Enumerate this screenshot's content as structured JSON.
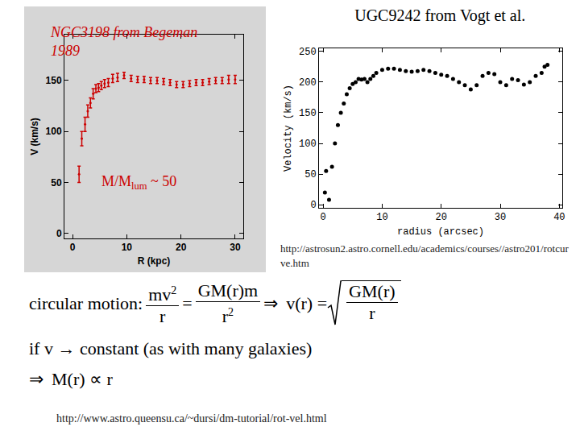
{
  "chart_data": [
    {
      "type": "scatter",
      "title": "NGC3198 from Begeman 1989",
      "x_label": "R (kpc)",
      "y_label": "V (km/s)",
      "color": "#cc0000",
      "x": [
        1.2,
        1.7,
        2.3,
        2.8,
        3.3,
        3.8,
        4.3,
        4.8,
        5.3,
        5.9,
        6.6,
        7.4,
        8.3,
        9.5,
        10.8,
        12.0,
        13.2,
        14.4,
        15.6,
        16.8,
        18.0,
        19.2,
        20.4,
        21.6,
        22.8,
        24.0,
        25.2,
        26.4,
        27.6,
        28.8,
        30.0
      ],
      "values": [
        58,
        93,
        107,
        120,
        128,
        137,
        142,
        143,
        145,
        147,
        148,
        152,
        153,
        155,
        152,
        151,
        151,
        150,
        150,
        149,
        148,
        146,
        146,
        147,
        148,
        148,
        149,
        150,
        150,
        151,
        151
      ],
      "errors": [
        8,
        7,
        7,
        6,
        5,
        5,
        4,
        4,
        4,
        4,
        4,
        4,
        4,
        3,
        3,
        3,
        3,
        3,
        3,
        3,
        3,
        3,
        3,
        3,
        3,
        3,
        3,
        3,
        3,
        4,
        4
      ],
      "xlim": [
        -1.5,
        31.5
      ],
      "ylim": [
        -5,
        195
      ],
      "xticks": [
        0,
        10,
        20,
        30
      ],
      "yticks": [
        0,
        50,
        100,
        150
      ],
      "annotation": {
        "text": "M/M",
        "subscript": "lum",
        "suffix": " ~ 50",
        "x": 5,
        "y": 50
      }
    },
    {
      "type": "scatter",
      "title": "UGC9242 from Vogt et al.",
      "x_label": "radius (arcsec)",
      "y_label": "Velocity (km/s)",
      "color": "#000000",
      "marker": "circle",
      "x": [
        0.3,
        0.5,
        1.0,
        1.5,
        2.0,
        2.5,
        3.0,
        3.5,
        4.0,
        4.5,
        5.0,
        5.5,
        6.0,
        6.5,
        7.0,
        7.5,
        8.0,
        8.5,
        9.0,
        10.0,
        11.0,
        12.0,
        13.0,
        14.0,
        15.0,
        16.0,
        17.0,
        18.0,
        19.0,
        20.0,
        21.0,
        22.0,
        23.0,
        24.0,
        25.0,
        26.0,
        27.0,
        28.0,
        29.0,
        30.0,
        31.0,
        32.0,
        33.0,
        34.0,
        35.0,
        36.0,
        37.0,
        37.5,
        38.0
      ],
      "values": [
        20,
        55,
        8,
        62,
        100,
        130,
        150,
        165,
        180,
        190,
        197,
        200,
        205,
        204,
        205,
        200,
        205,
        210,
        215,
        220,
        222,
        222,
        220,
        218,
        217,
        218,
        220,
        218,
        215,
        212,
        210,
        205,
        200,
        195,
        188,
        195,
        210,
        215,
        213,
        200,
        195,
        205,
        203,
        196,
        200,
        210,
        215,
        225,
        228
      ],
      "xlim": [
        -0.7,
        40.5
      ],
      "ylim": [
        -5,
        255
      ],
      "xticks": [
        0,
        10,
        20,
        30,
        40
      ],
      "yticks": [
        0,
        50,
        100,
        150,
        200,
        250
      ]
    }
  ],
  "source_url_1": "http://astrosun2.astro.cornell.edu/academics/courses//astro201/rotcurve.htm",
  "circular_motion": {
    "label": "circular motion:",
    "lhs": {
      "num": "mv",
      "num_sup": "2",
      "den": "r"
    },
    "equals": "=",
    "rhs": {
      "num": "GM(r)m",
      "den": "r",
      "den_sup": "2"
    },
    "implies": "⇒",
    "result": "v(r) =",
    "root": {
      "num": "GM(r)",
      "den": "r"
    }
  },
  "condition": "if v → constant (as with many galaxies)",
  "conclusion": {
    "implies": "⇒",
    "text": "M(r) ∝ r"
  },
  "source_url_2": "http://www.astro.queensu.ca/~dursi/dm-tutorial/rot-vel.html"
}
